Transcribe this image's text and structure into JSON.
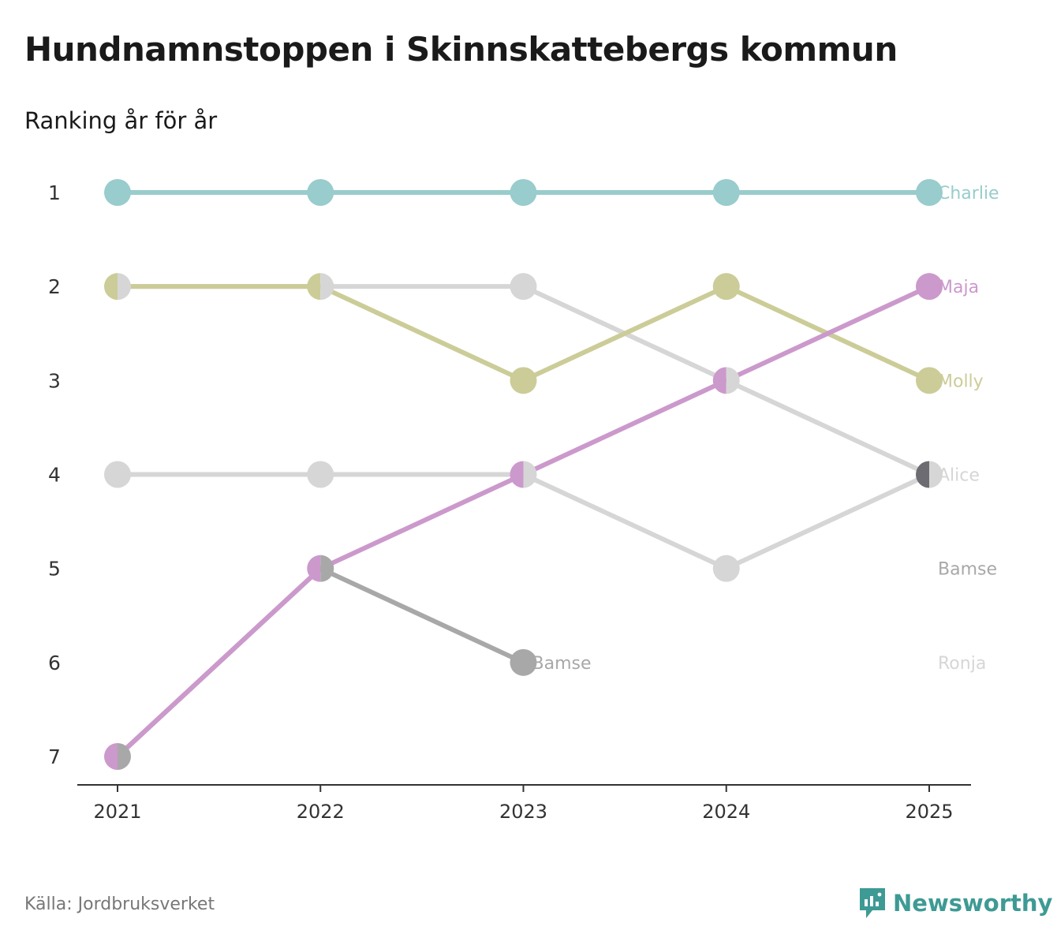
{
  "title": "Hundnamnstoppen i Skinnskattebergs kommun",
  "subtitle": "Ranking år för år",
  "source": "Källa: Jordbruksverket",
  "brand": {
    "name": "Newsworthy",
    "icon": "newsworthy-logo-icon",
    "color": "#3e9a94"
  },
  "chart_data": {
    "type": "line",
    "chart_kind": "bump",
    "title": "Hundnamnstoppen i Skinnskattebergs kommun",
    "subtitle": "Ranking år för år",
    "x": [
      2021,
      2022,
      2023,
      2024,
      2025
    ],
    "x_tick_labels": [
      "2021",
      "2022",
      "2023",
      "2024",
      "2025"
    ],
    "y_ticks": [
      1,
      2,
      3,
      4,
      5,
      6,
      7
    ],
    "y_tick_labels": [
      "1",
      "2",
      "3",
      "4",
      "5",
      "6",
      "7"
    ],
    "ylim": [
      1,
      7
    ],
    "y_inverted": true,
    "grid": false,
    "series": [
      {
        "name": "Ronja",
        "label": "Ronja",
        "color": "#d6d6d6",
        "values": [
          2,
          2,
          2,
          3,
          4
        ],
        "label_rank": 6
      },
      {
        "name": "Bamse",
        "label": "Bamse",
        "color": "#d6d6d6",
        "values": [
          4,
          4,
          4,
          5,
          4
        ],
        "label_rank": 5
      },
      {
        "name": "Alice",
        "label": "Alice",
        "color": "#6c6c72",
        "values": [
          null,
          null,
          null,
          null,
          4
        ],
        "label_rank": 4
      },
      {
        "name": "Bamse (2021–2023)",
        "label": "Bamse",
        "color": "#a8a8a8",
        "values": [
          7,
          5,
          6,
          null,
          null
        ],
        "label_rank": 6
      },
      {
        "name": "Molly",
        "label": "Molly",
        "color": "#cccc98",
        "values": [
          2,
          2,
          3,
          2,
          3
        ],
        "label_rank": 3
      },
      {
        "name": "Maja",
        "label": "Maja",
        "color": "#cc99cc",
        "values": [
          7,
          5,
          4,
          3,
          2
        ],
        "label_rank": 2
      },
      {
        "name": "Charlie",
        "label": "Charlie",
        "color": "#99cccc",
        "values": [
          1,
          1,
          1,
          1,
          1
        ],
        "label_rank": 1
      }
    ],
    "end_labels": [
      {
        "text": "Charlie",
        "color": "#99cccc",
        "rank": 1,
        "year": 2025
      },
      {
        "text": "Maja",
        "color": "#cc99cc",
        "rank": 2,
        "year": 2025
      },
      {
        "text": "Molly",
        "color": "#cccc98",
        "rank": 3,
        "year": 2025
      },
      {
        "text": "Alice",
        "color": "#d6d6d6",
        "rank": 4,
        "year": 2025
      },
      {
        "text": "Bamse",
        "color": "#a8a8a8",
        "rank": 5,
        "year": 2025
      },
      {
        "text": "Ronja",
        "color": "#d6d6d6",
        "rank": 6,
        "year": 2025
      },
      {
        "text": "Bamse",
        "color": "#a8a8a8",
        "rank": 6,
        "year": 2023
      }
    ]
  }
}
